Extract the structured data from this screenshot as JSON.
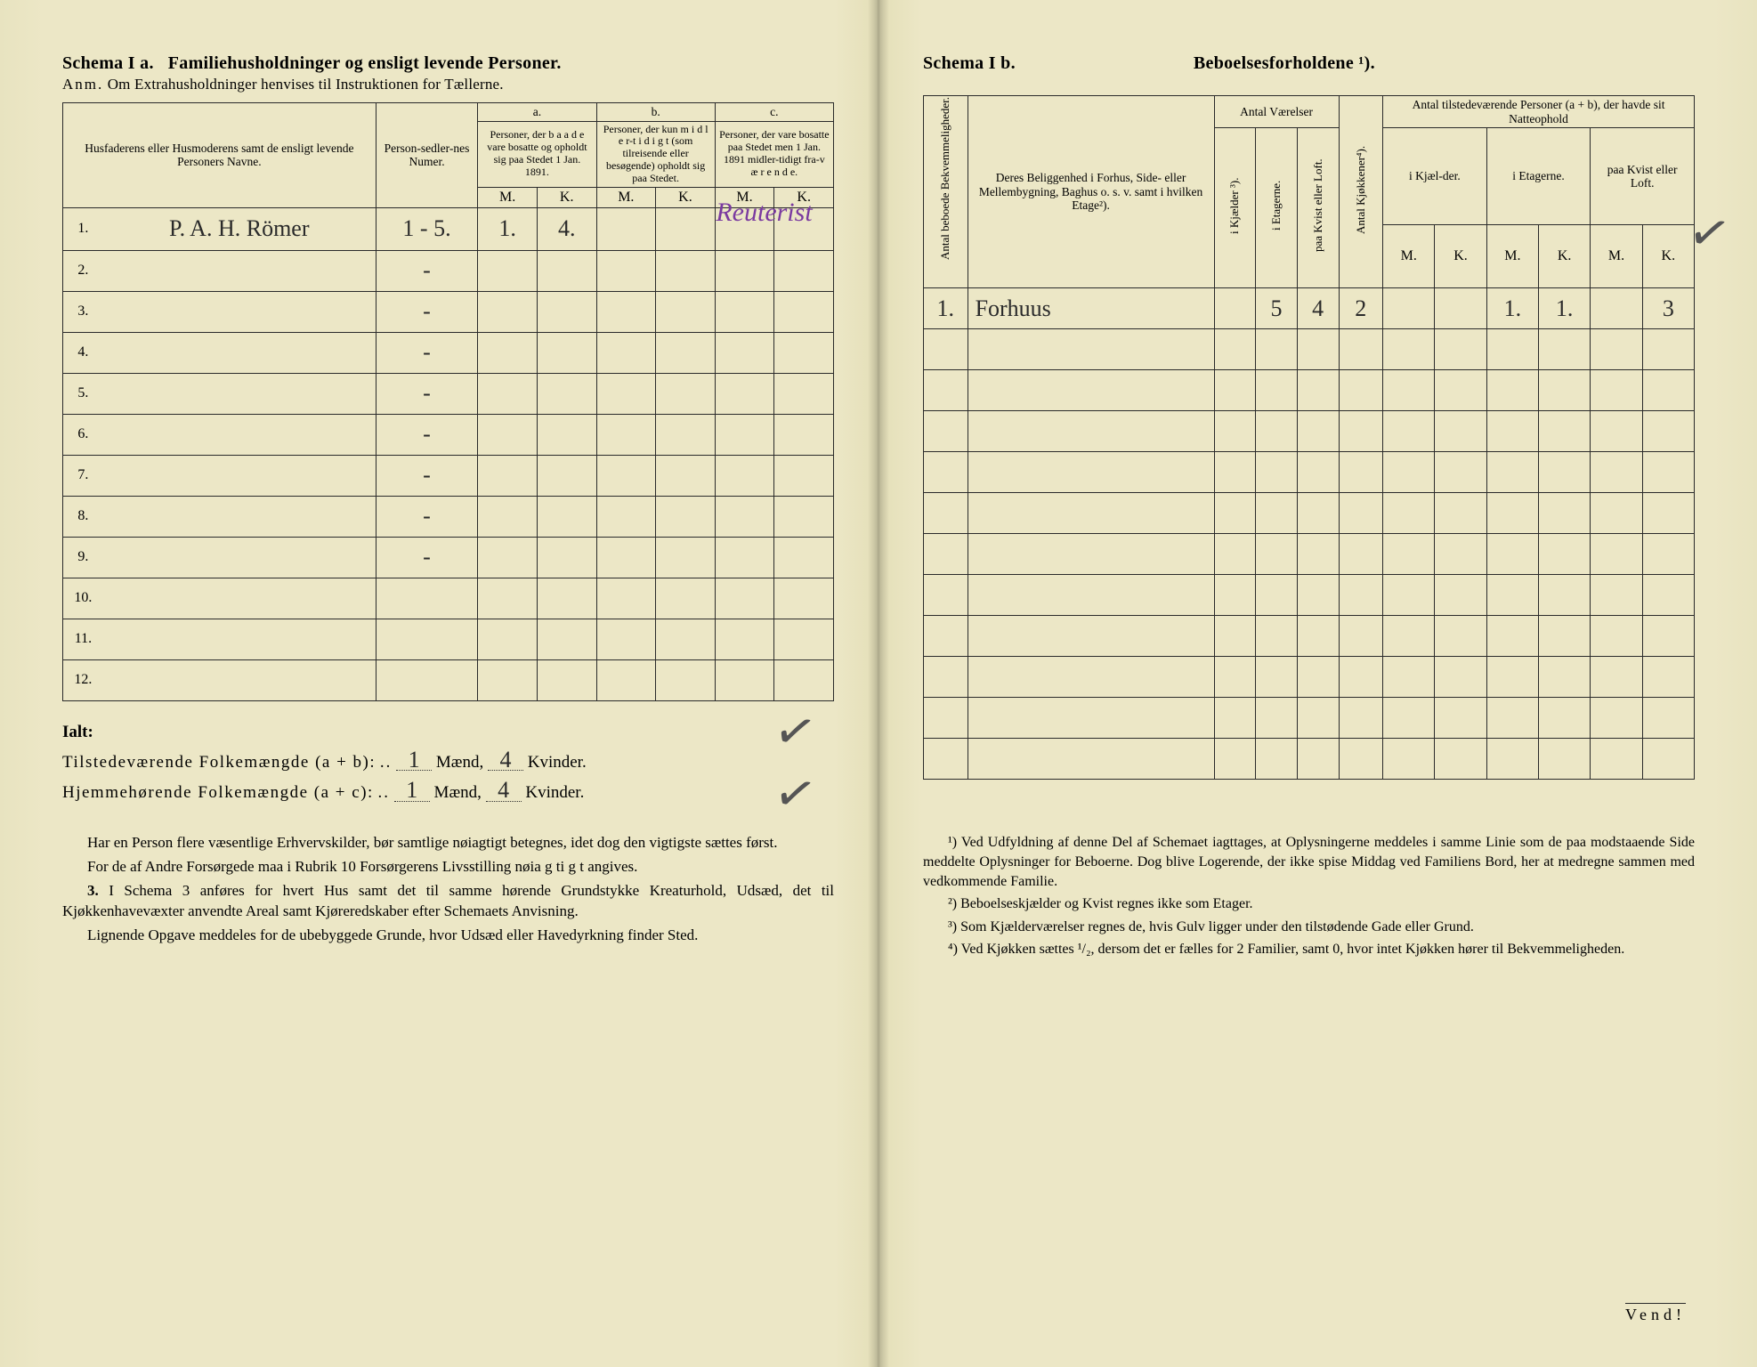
{
  "document_type": "historical-census-form",
  "paper_color": "#ece7c6",
  "ink_color": "#2a2a2a",
  "handwriting_color": "#2a2a2a",
  "purple_ink_color": "#7a3aa0",
  "left": {
    "schema_label": "Schema I a.",
    "schema_title": "Familiehusholdninger og ensligt levende Personer.",
    "subnote_prefix": "Anm.",
    "subnote_text": "Om Extrahusholdninger henvises til Instruktionen for Tællerne.",
    "header": {
      "names": "Husfaderens eller Husmoderens samt de ensligt levende Personers Navne.",
      "person_numer": "Person-sedler-nes Numer.",
      "col_a_head": "a.",
      "col_a": "Personer, der b a a d e vare bosatte og opholdt sig paa Stedet 1 Jan. 1891.",
      "col_b_head": "b.",
      "col_b": "Personer, der kun m i d l e r-t i d i g t (som tilreisende eller besøgende) opholdt sig paa Stedet.",
      "col_c_head": "c.",
      "col_c": "Personer, der vare bosatte paa Stedet men 1 Jan. 1891 midler-tidigt fra-v æ r e n d e.",
      "M": "M.",
      "K": "K."
    },
    "rows": [
      {
        "n": "1.",
        "name": "P. A. H. Römer",
        "numer": "1 - 5.",
        "aM": "1.",
        "aK": "4.",
        "cK_note": "Reuterist"
      },
      {
        "n": "2.",
        "name": "",
        "numer": "-"
      },
      {
        "n": "3.",
        "name": "",
        "numer": "-"
      },
      {
        "n": "4.",
        "name": "",
        "numer": "-"
      },
      {
        "n": "5.",
        "name": "",
        "numer": "-"
      },
      {
        "n": "6.",
        "name": "",
        "numer": "-"
      },
      {
        "n": "7.",
        "name": "",
        "numer": "-"
      },
      {
        "n": "8.",
        "name": "",
        "numer": "-"
      },
      {
        "n": "9.",
        "name": "",
        "numer": "-"
      },
      {
        "n": "10.",
        "name": "",
        "numer": ""
      },
      {
        "n": "11.",
        "name": "",
        "numer": ""
      },
      {
        "n": "12.",
        "name": "",
        "numer": ""
      }
    ],
    "totals": {
      "ialt": "Ialt:",
      "line1_label": "Tilstedeværende Folkemængde (a + b):",
      "line2_label": "Hjemmehørende Folkemængde (a + c):",
      "maend": "Mænd,",
      "kvinder": "Kvinder.",
      "v1m": "1",
      "v1k": "4",
      "v2m": "1",
      "v2k": "4"
    },
    "body": {
      "p1": "Har en Person flere væsentlige Erhvervskilder, bør samtlige nøiagtigt betegnes, idet dog den vigtigste sættes først.",
      "p2": "For de af Andre Forsørgede maa i Rubrik 10 Forsørgerens Livsstilling nøia g ti g t angives.",
      "p3_label": "3.",
      "p3": "I Schema 3 anføres for hvert Hus samt det til samme hørende Grundstykke Kreaturhold, Udsæd, det til Kjøkkenhavevæxter anvendte Areal samt Kjøreredskaber efter Schemaets Anvisning.",
      "p4": "Lignende Opgave meddeles for de ubebyggede Grunde, hvor Udsæd eller Havedyrkning finder Sted."
    },
    "checkmarks": [
      "✓",
      "✓"
    ]
  },
  "right": {
    "schema_label": "Schema I b.",
    "schema_title": "Beboelsesforholdene ¹).",
    "header": {
      "v_antal_beboede": "Antal beboede Bekvemmeligheder.",
      "beliggenhed": "Deres Beliggenhed i Forhus, Side- eller Mellembygning, Baghus o. s. v. samt i hvilken Etage²).",
      "antal_vaerelser": "Antal Værelser",
      "v_kjaelder": "i Kjælder ³).",
      "v_etagerne": "i Etagerne.",
      "v_kvist": "paa Kvist eller Loft.",
      "v_kjokkener": "Antal Kjøkkener⁴).",
      "natteophold": "Antal tilstedeværende Personer (a + b), der havde sit Natteophold",
      "n_kj": "i Kjæl-der.",
      "n_et": "i Etagerne.",
      "n_kv": "paa Kvist eller Loft.",
      "M": "M.",
      "K": "K."
    },
    "rows": [
      {
        "bk": "1.",
        "bel": "Forhuus",
        "et": "5",
        "kv": "4",
        "kj": "2",
        "nEtM": "1.",
        "nEtK": "1.",
        "nKvK": "3"
      }
    ],
    "row_count": 12,
    "footnotes": {
      "f1": "¹) Ved Udfyldning af denne Del af Schemaet iagttages, at Oplysningerne meddeles i samme Linie som de paa modstaaende Side meddelte Oplysninger for Beboerne. Dog blive Logerende, der ikke spise Middag ved Familiens Bord, her at medregne sammen med vedkommende Familie.",
      "f2": "²) Beboelseskjælder og Kvist regnes ikke som Etager.",
      "f3": "³) Som Kjælderværelser regnes de, hvis Gulv ligger under den tilstødende Gade eller Grund.",
      "f4": "⁴) Ved Kjøkken sættes ¹/₂, dersom det er fælles for 2 Familier, samt 0, hvor intet Kjøkken hører til Bekvemmeligheden."
    },
    "vend": "Vend!",
    "checkmark": "✓"
  }
}
